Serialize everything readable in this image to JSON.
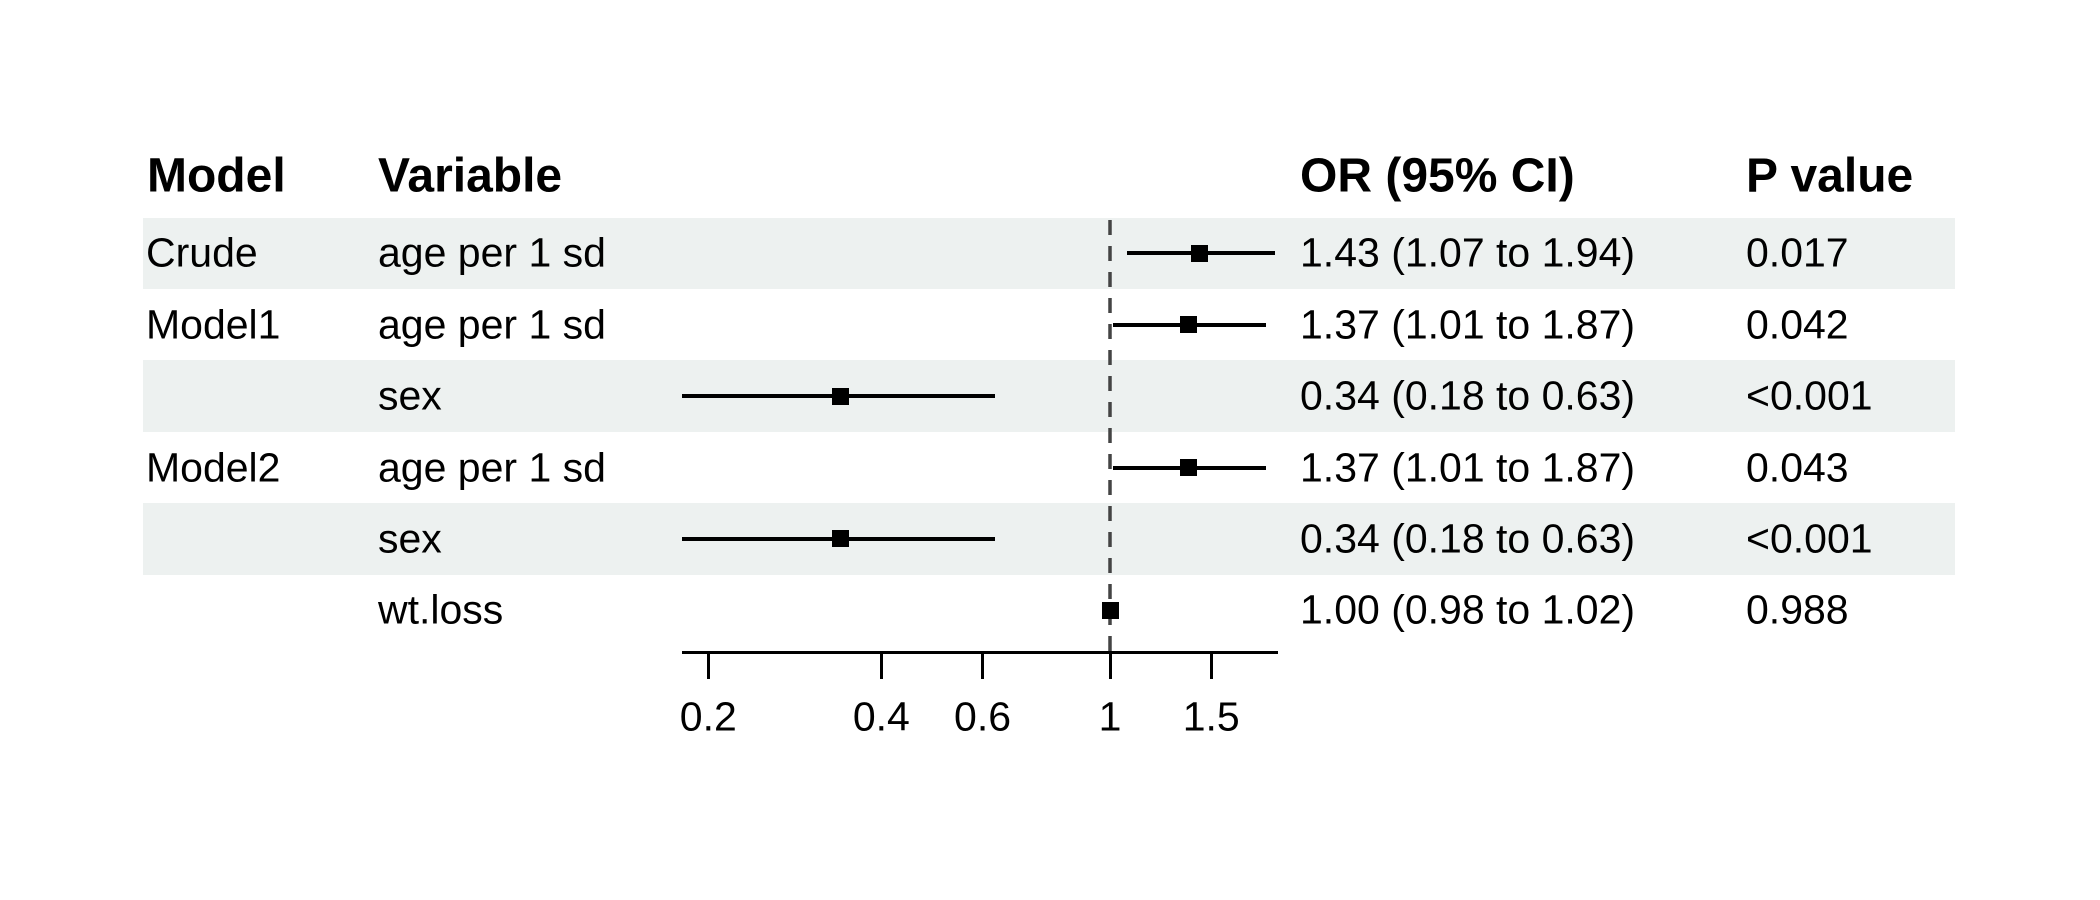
{
  "table": {
    "columns": [
      {
        "key": "model",
        "label": "Model"
      },
      {
        "key": "variable",
        "label": "Variable"
      },
      {
        "key": "or_ci",
        "label": "OR (95% CI)"
      },
      {
        "key": "p",
        "label": "P value"
      }
    ],
    "rows": [
      {
        "model": "Crude",
        "variable": "age per 1 sd",
        "or_ci": "1.43 (1.07 to 1.94)",
        "p": "0.017",
        "shaded": true
      },
      {
        "model": "Model1",
        "variable": "age per 1 sd",
        "or_ci": "1.37 (1.01 to 1.87)",
        "p": "0.042",
        "shaded": false
      },
      {
        "model": "",
        "variable": "sex",
        "or_ci": "0.34 (0.18 to 0.63)",
        "p": "<0.001",
        "shaded": true
      },
      {
        "model": "Model2",
        "variable": "age per 1 sd",
        "or_ci": "1.37 (1.01 to 1.87)",
        "p": "0.043",
        "shaded": false
      },
      {
        "model": "",
        "variable": "sex",
        "or_ci": "0.34 (0.18 to 0.63)",
        "p": "<0.001",
        "shaded": true
      },
      {
        "model": "",
        "variable": "wt.loss",
        "or_ci": "1.00 (0.98 to 1.02)",
        "p": "0.988",
        "shaded": false
      }
    ]
  },
  "chart_data": {
    "type": "forest",
    "x_scale": "log",
    "xlim": [
      0.18,
      1.96
    ],
    "x_ticks": [
      0.2,
      0.4,
      0.6,
      1,
      1.5
    ],
    "x_tick_labels": [
      "0.2",
      "0.4",
      "0.6",
      "1",
      "1.5"
    ],
    "reference_line": 1,
    "rows": [
      {
        "model": "Crude",
        "variable": "age per 1 sd",
        "or": 1.43,
        "ci_low": 1.07,
        "ci_high": 1.94,
        "p": "0.017"
      },
      {
        "model": "Model1",
        "variable": "age per 1 sd",
        "or": 1.37,
        "ci_low": 1.01,
        "ci_high": 1.87,
        "p": "0.042"
      },
      {
        "model": "Model1",
        "variable": "sex",
        "or": 0.34,
        "ci_low": 0.18,
        "ci_high": 0.63,
        "p": "<0.001"
      },
      {
        "model": "Model2",
        "variable": "age per 1 sd",
        "or": 1.37,
        "ci_low": 1.01,
        "ci_high": 1.87,
        "p": "0.043"
      },
      {
        "model": "Model2",
        "variable": "sex",
        "or": 0.34,
        "ci_low": 0.18,
        "ci_high": 0.63,
        "p": "<0.001"
      },
      {
        "model": "Model2",
        "variable": "wt.loss",
        "or": 1.0,
        "ci_low": 0.98,
        "ci_high": 1.02,
        "p": "0.988"
      }
    ]
  },
  "colors": {
    "background": "#ffffff",
    "row_shade": "#edf1f0",
    "text": "#000000",
    "ci_line": "#000000",
    "marker": "#000000",
    "reference_line": "#444444",
    "axis": "#000000"
  }
}
